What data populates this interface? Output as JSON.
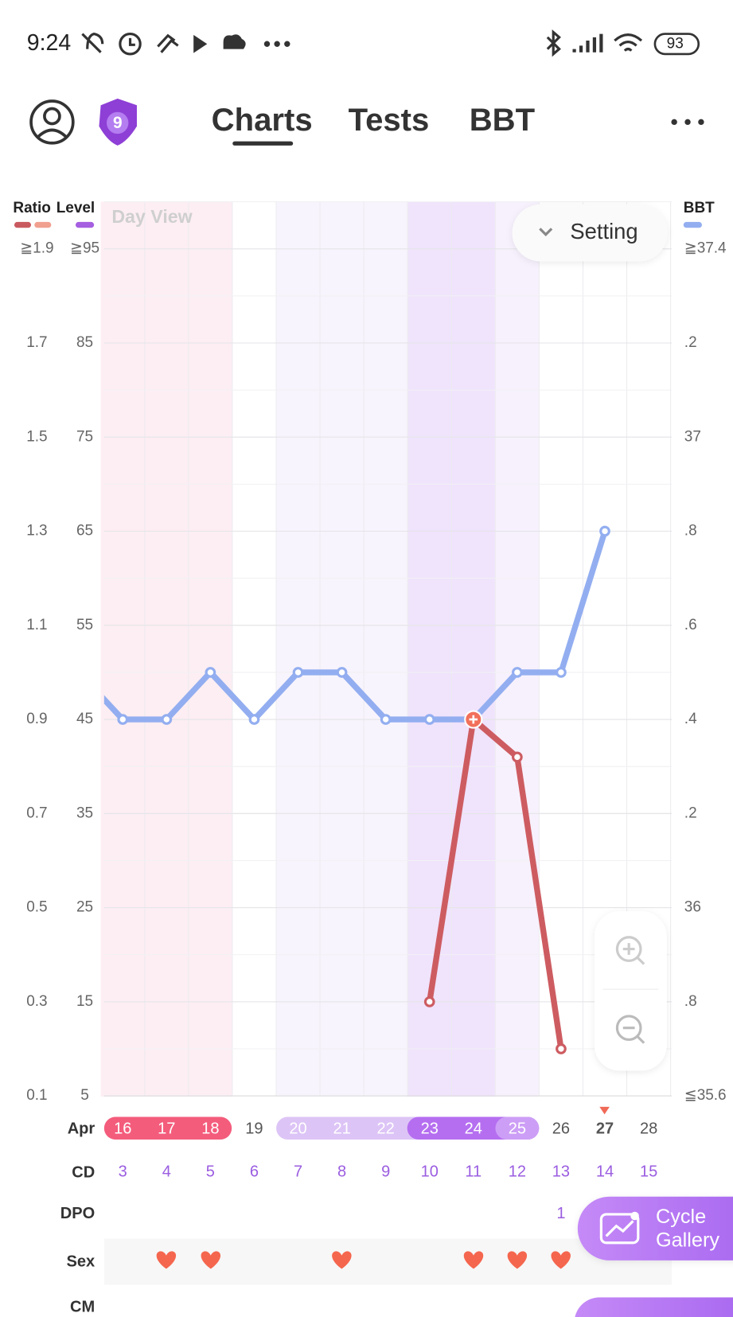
{
  "status_bar": {
    "time": "9:24",
    "battery": "93"
  },
  "nav": {
    "badge": "9",
    "tabs": [
      "Charts",
      "Tests",
      "BBT"
    ]
  },
  "chart_data": {
    "type": "line",
    "title": "Day View",
    "setting": "Setting",
    "y_label": "Ratio",
    "ylevel_label": "Level",
    "y2_label": "BBT",
    "categories": [
      null,
      "16",
      "17",
      "18",
      "19",
      "20",
      "21",
      "22",
      "23",
      "24",
      "25",
      "26",
      "27",
      "28"
    ],
    "series": [
      {
        "name": "BBT",
        "color": "#93aef0",
        "axis": "y2",
        "values": [
          36.5,
          36.4,
          36.4,
          36.5,
          36.4,
          36.5,
          36.5,
          36.4,
          36.4,
          36.4,
          36.5,
          36.5,
          36.8,
          null
        ]
      },
      {
        "name": "Ratio",
        "color": "#cd5c61",
        "values": [
          null,
          null,
          null,
          null,
          null,
          null,
          null,
          null,
          0.3,
          0.9,
          0.82,
          0.2,
          null,
          null
        ]
      }
    ],
    "ylim": [
      0.1,
      2.0
    ],
    "yticks": [
      {
        "value": 1.9,
        "label": "≧1.9"
      },
      1.7,
      1.5,
      1.3,
      1.1,
      0.9,
      0.7,
      0.5,
      0.3,
      0.1
    ],
    "ylevel_lim": [
      5,
      100
    ],
    "ylevel_ticks": [
      {
        "value": 95,
        "label": "≧95"
      },
      85,
      75,
      65,
      55,
      45,
      35,
      25,
      15,
      5
    ],
    "y2lim": [
      35.6,
      37.5
    ],
    "y2ticks": [
      {
        "value": 37.4,
        "label": "≧37.4"
      },
      {
        "value": 37.2,
        "label": ".2"
      },
      37,
      {
        "value": 36.8,
        "label": ".8"
      },
      {
        "value": 36.6,
        "label": ".6"
      },
      {
        "value": 36.4,
        "label": ".4"
      },
      {
        "value": 36.2,
        "label": ".2"
      },
      36,
      {
        "value": 35.8,
        "label": ".8"
      },
      {
        "value": 35.6,
        "label": "≦35.6"
      }
    ],
    "grid": true
  },
  "day_rows": {
    "month_label": "Apr",
    "cd_label": "CD",
    "cd": [
      null,
      3,
      4,
      5,
      6,
      7,
      8,
      9,
      10,
      11,
      12,
      13,
      14,
      15
    ],
    "dpo_label": "DPO",
    "dpo": [
      null,
      null,
      null,
      null,
      null,
      null,
      null,
      null,
      null,
      null,
      null,
      1,
      null,
      null
    ],
    "sex_label": "Sex",
    "cm_label": "CM"
  },
  "buttons": {
    "cycle_gallery": [
      "Cycle",
      "Gallery"
    ]
  }
}
